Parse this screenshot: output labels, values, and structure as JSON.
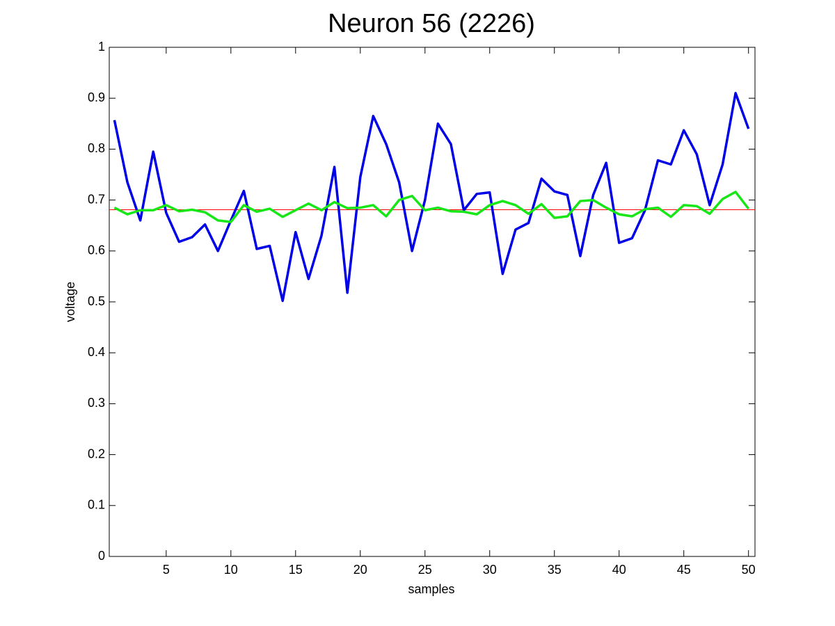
{
  "chart_data": {
    "type": "line",
    "title": "Neuron 56 (2226)",
    "x_label": "samples",
    "y_label": "voltage",
    "x": [
      1,
      2,
      3,
      4,
      5,
      6,
      7,
      8,
      9,
      10,
      11,
      12,
      13,
      14,
      15,
      16,
      17,
      18,
      19,
      20,
      21,
      22,
      23,
      24,
      25,
      26,
      27,
      28,
      29,
      30,
      31,
      32,
      33,
      34,
      35,
      36,
      37,
      38,
      39,
      40,
      41,
      42,
      43,
      44,
      45,
      46,
      47,
      48,
      49,
      50
    ],
    "series": [
      {
        "color": "#0000e6",
        "values": [
          0.857,
          0.735,
          0.66,
          0.795,
          0.675,
          0.618,
          0.627,
          0.652,
          0.6,
          0.66,
          0.718,
          0.604,
          0.61,
          0.502,
          0.637,
          0.545,
          0.63,
          0.765,
          0.518,
          0.745,
          0.865,
          0.81,
          0.735,
          0.6,
          0.7,
          0.85,
          0.81,
          0.68,
          0.712,
          0.715,
          0.555,
          0.642,
          0.655,
          0.742,
          0.717,
          0.71,
          0.59,
          0.71,
          0.773,
          0.616,
          0.625,
          0.68,
          0.778,
          0.77,
          0.837,
          0.79,
          0.69,
          0.77,
          0.91,
          0.84
        ]
      },
      {
        "color": "#17e617",
        "values": [
          0.685,
          0.672,
          0.68,
          0.68,
          0.69,
          0.678,
          0.681,
          0.676,
          0.66,
          0.657,
          0.69,
          0.677,
          0.683,
          0.667,
          0.68,
          0.693,
          0.68,
          0.696,
          0.684,
          0.685,
          0.69,
          0.668,
          0.7,
          0.708,
          0.68,
          0.685,
          0.678,
          0.677,
          0.672,
          0.69,
          0.698,
          0.69,
          0.673,
          0.692,
          0.665,
          0.668,
          0.698,
          0.7,
          0.685,
          0.672,
          0.668,
          0.682,
          0.685,
          0.667,
          0.69,
          0.688,
          0.673,
          0.702,
          0.716,
          0.683
        ]
      }
    ],
    "reference_line": {
      "value": 0.681,
      "color": "#ff0000"
    },
    "xlim": [
      0.6,
      50.5
    ],
    "xticks": [
      5,
      10,
      15,
      20,
      25,
      30,
      35,
      40,
      45,
      50
    ],
    "ylim": [
      0,
      1
    ],
    "yticks": [
      0,
      0.1,
      0.2,
      0.3,
      0.4,
      0.5,
      0.6,
      0.7,
      0.8,
      0.9,
      1
    ]
  }
}
